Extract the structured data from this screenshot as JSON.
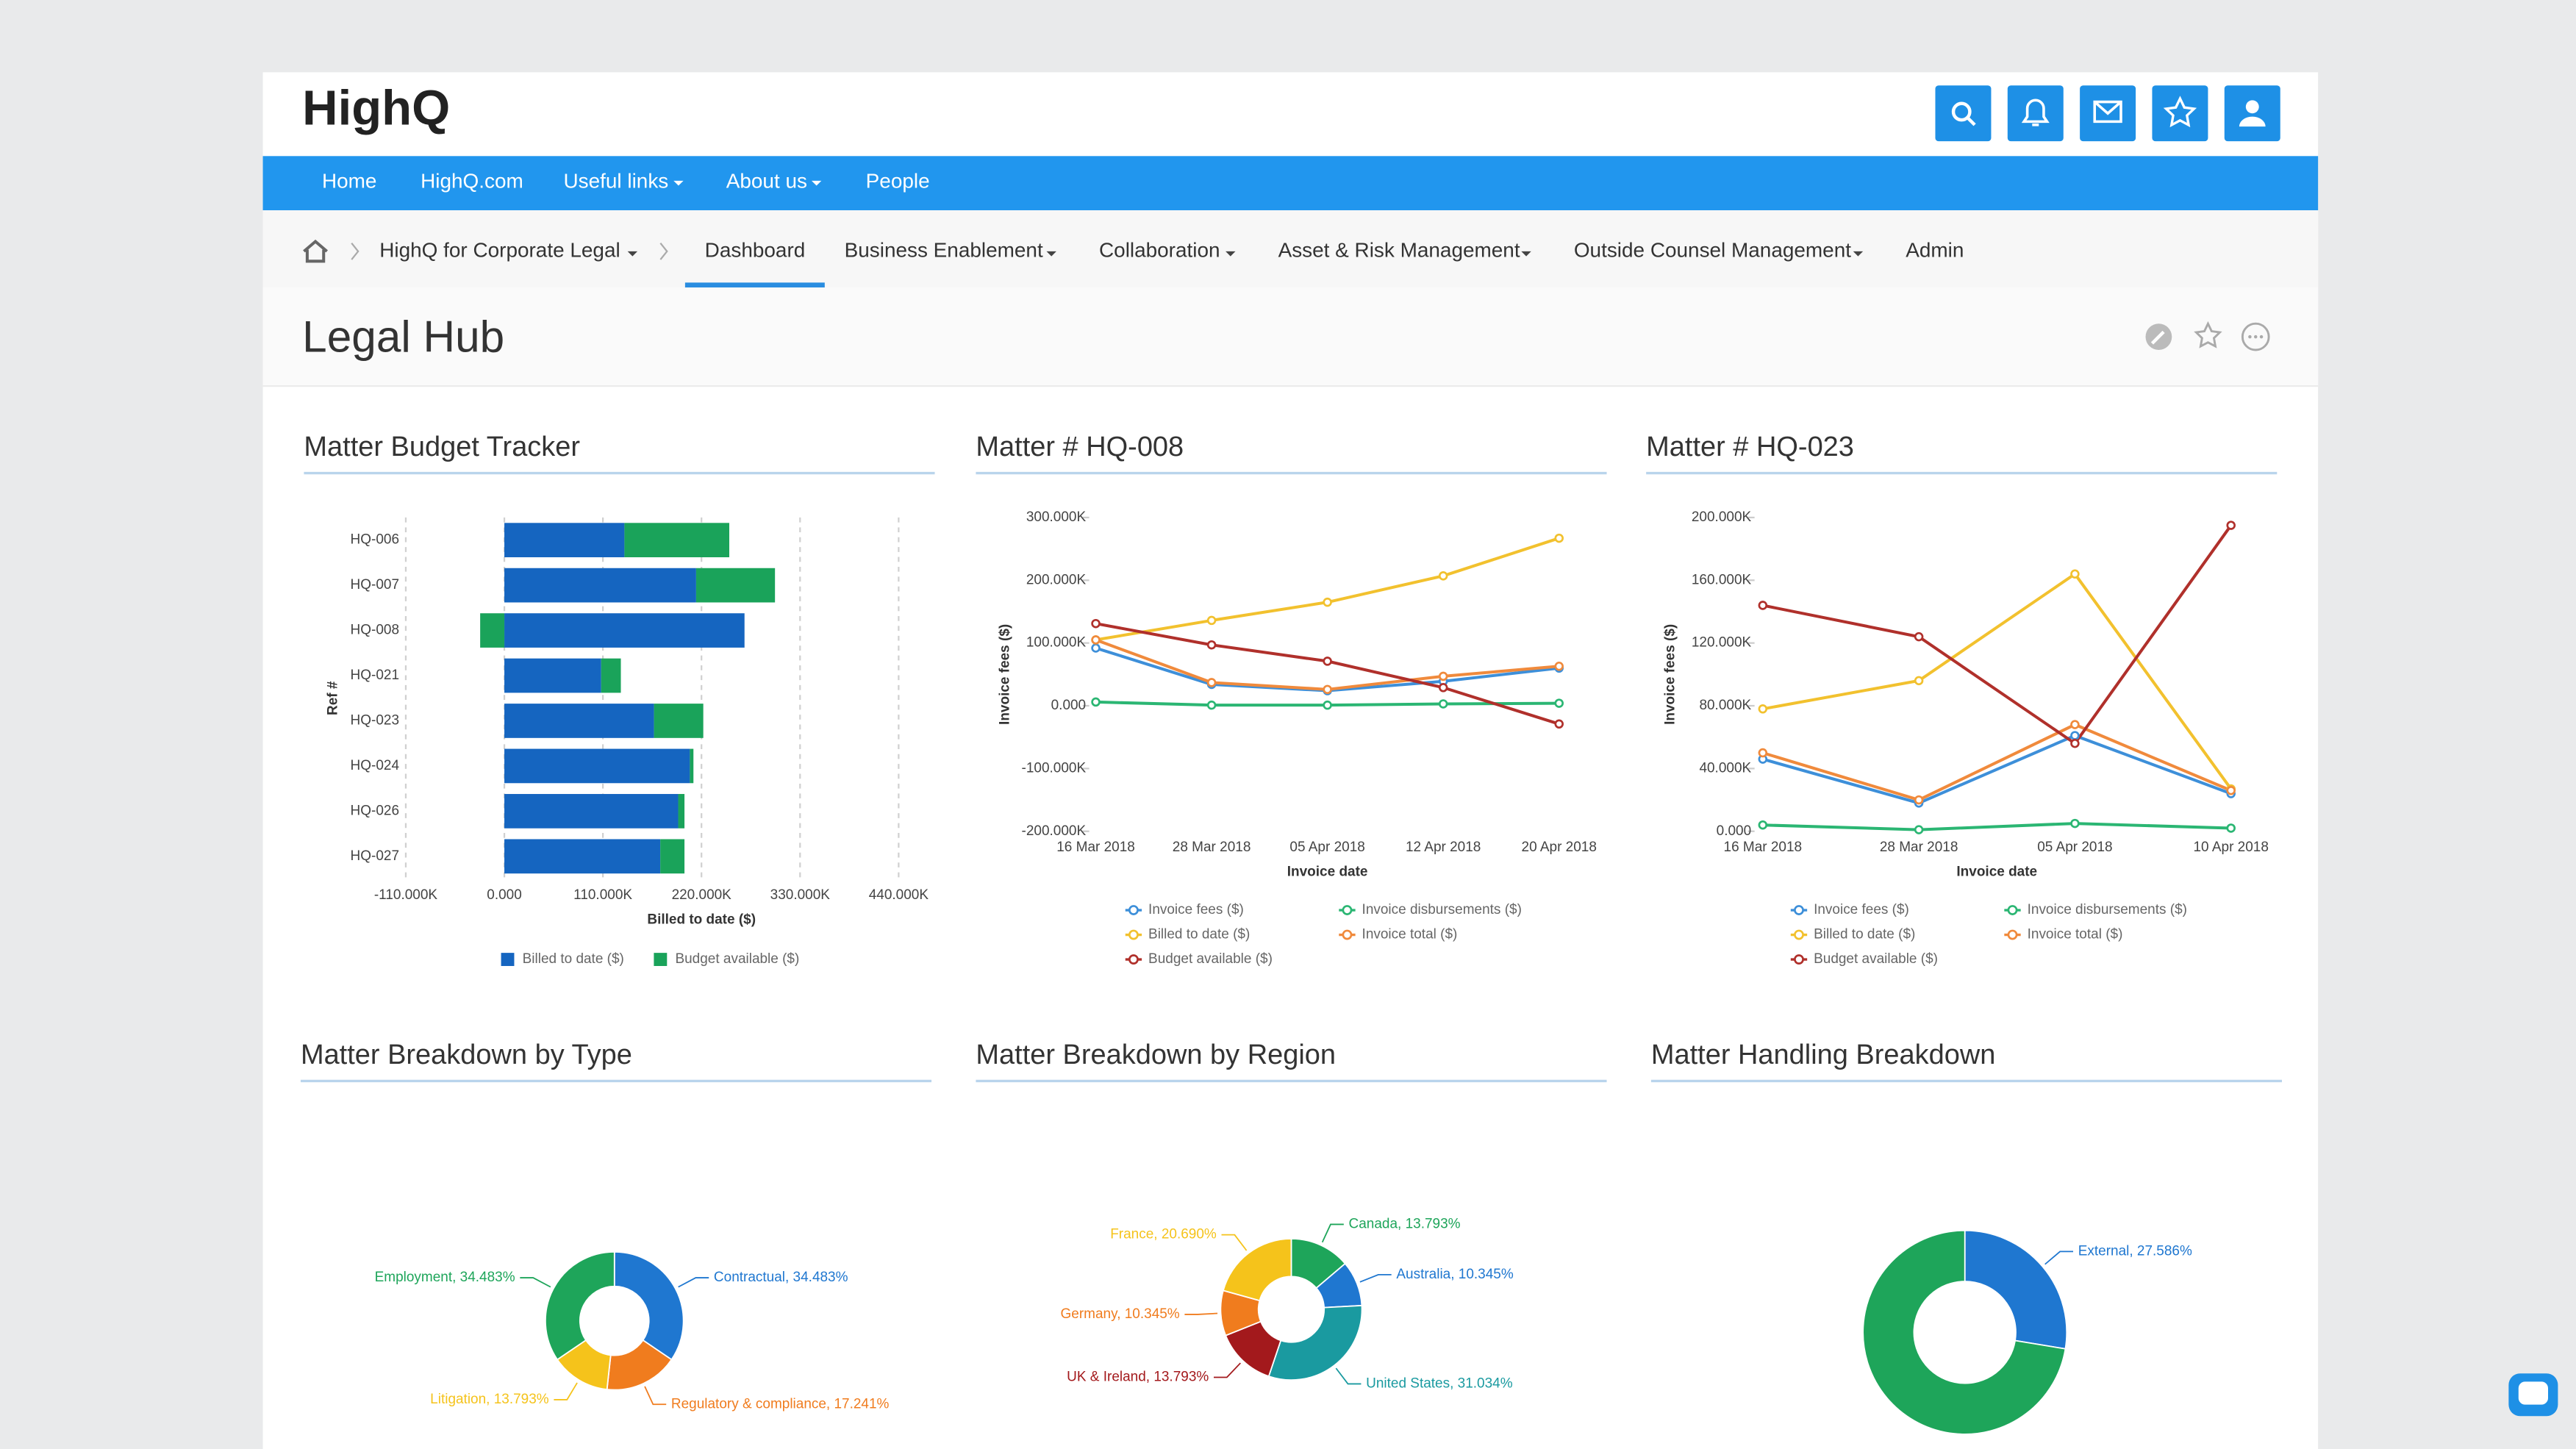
{
  "header": {
    "logo": "HighQ"
  },
  "nav": {
    "items": [
      "Home",
      "HighQ.com",
      "Useful links",
      "About us",
      "People"
    ]
  },
  "breadcrumb": {
    "items": [
      "HighQ for Corporate Legal",
      "Dashboard",
      "Business Enablement",
      "Collaboration",
      "Asset & Risk Management",
      "Outside Counsel Management",
      "Admin"
    ]
  },
  "page": {
    "title": "Legal Hub"
  },
  "chart_data": [
    {
      "type": "bar",
      "orientation": "horizontal",
      "stacked": true,
      "title": "Matter Budget Tracker",
      "categories": [
        "HQ-006",
        "HQ-007",
        "HQ-008",
        "HQ-021",
        "HQ-023",
        "HQ-024",
        "HQ-026",
        "HQ-027"
      ],
      "series": [
        {
          "name": "Billed to date ($)",
          "color": "#1565c0",
          "values": [
            134000,
            214000,
            268000,
            108000,
            167000,
            207000,
            194000,
            174000
          ]
        },
        {
          "name": "Budget available ($)",
          "color": "#1aa35a",
          "values": [
            117000,
            88000,
            -27000,
            22000,
            55000,
            4000,
            7000,
            27000
          ]
        }
      ],
      "xlabel": "Billed to date ($)",
      "ylabel": "Ref #",
      "xlim": [
        -110000,
        440000
      ],
      "xticks": [
        {
          "value": -110000,
          "label": "-110.000K"
        },
        {
          "value": 0,
          "label": "0.000"
        },
        {
          "value": 110000,
          "label": "110.000K"
        },
        {
          "value": 220000,
          "label": "220.000K"
        },
        {
          "value": 330000,
          "label": "330.000K"
        },
        {
          "value": 440000,
          "label": "440.000K"
        }
      ],
      "grid": true,
      "legend": "bottom"
    },
    {
      "type": "line",
      "title": "Matter # HQ-008",
      "categories": [
        "16 Mar 2018",
        "28 Mar 2018",
        "05 Apr 2018",
        "12 Apr 2018",
        "20 Apr 2018"
      ],
      "series": [
        {
          "name": "Invoice fees ($)",
          "color": "#3d8fd9",
          "values": [
            92000,
            34000,
            24000,
            39000,
            60000
          ]
        },
        {
          "name": "Invoice disbursements ($)",
          "color": "#2bb673",
          "values": [
            6000,
            1000,
            1000,
            3000,
            4000
          ]
        },
        {
          "name": "Billed to date ($)",
          "color": "#f2c12e",
          "values": [
            105000,
            136000,
            165000,
            207000,
            267000
          ]
        },
        {
          "name": "Invoice total ($)",
          "color": "#f08a3c",
          "values": [
            105000,
            37000,
            26000,
            47000,
            63000
          ]
        },
        {
          "name": "Budget available ($)",
          "color": "#b0302b",
          "values": [
            131000,
            97000,
            71000,
            29000,
            -29000
          ]
        }
      ],
      "xlabel": "Invoice date",
      "ylabel": "Invoice fees ($)",
      "ylim": [
        -200000,
        300000
      ],
      "yticks": [
        {
          "value": 300000,
          "label": "300.000K"
        },
        {
          "value": 200000,
          "label": "200.000K"
        },
        {
          "value": 100000,
          "label": "100.000K"
        },
        {
          "value": 0,
          "label": "0.000"
        },
        {
          "value": -100000,
          "label": "-100.000K"
        },
        {
          "value": -200000,
          "label": "-200.000K"
        }
      ],
      "grid": false,
      "legend": "bottom"
    },
    {
      "type": "line",
      "title": "Matter # HQ-023",
      "categories": [
        "16 Mar 2018",
        "28 Mar 2018",
        "05 Apr 2018",
        "10 Apr 2018"
      ],
      "series": [
        {
          "name": "Invoice fees ($)",
          "color": "#3d8fd9",
          "values": [
            46000,
            18000,
            61000,
            24000
          ]
        },
        {
          "name": "Invoice disbursements ($)",
          "color": "#2bb673",
          "values": [
            4000,
            1000,
            5000,
            2000
          ]
        },
        {
          "name": "Billed to date ($)",
          "color": "#f2c12e",
          "values": [
            78000,
            96000,
            164000,
            27000
          ]
        },
        {
          "name": "Invoice total ($)",
          "color": "#f08a3c",
          "values": [
            50000,
            20000,
            68000,
            26000
          ]
        },
        {
          "name": "Budget available ($)",
          "color": "#b0302b",
          "values": [
            144000,
            124000,
            56000,
            195000
          ]
        }
      ],
      "xlabel": "Invoice date",
      "ylabel": "Invoice fees ($)",
      "ylim": [
        0,
        200000
      ],
      "yticks": [
        {
          "value": 200000,
          "label": "200.000K"
        },
        {
          "value": 160000,
          "label": "160.000K"
        },
        {
          "value": 120000,
          "label": "120.000K"
        },
        {
          "value": 80000,
          "label": "80.000K"
        },
        {
          "value": 40000,
          "label": "40.000K"
        },
        {
          "value": 0,
          "label": "0.000"
        }
      ],
      "grid": false,
      "legend": "bottom"
    },
    {
      "type": "pie",
      "donut": true,
      "title": "Matter Breakdown by Type",
      "values": [
        34.483,
        17.241,
        13.793,
        34.483
      ],
      "value_labels": [
        "Contractual, 34.483%",
        "Regulatory & compliance, 17.241%",
        "Litigation, 13.793%",
        "Employment, 34.483%"
      ],
      "colors": [
        "#1f77d0",
        "#f07c1e",
        "#f5c31b",
        "#1ea55a"
      ]
    },
    {
      "type": "pie",
      "donut": true,
      "title": "Matter Breakdown by Region",
      "values": [
        13.793,
        10.345,
        31.034,
        13.793,
        10.345,
        20.69
      ],
      "value_labels": [
        "Canada, 13.793%",
        "Australia, 10.345%",
        "United States, 31.034%",
        "UK & Ireland, 13.793%",
        "Germany, 10.345%",
        "France, 20.690%"
      ],
      "colors": [
        "#1ea55a",
        "#1f77d0",
        "#1a9aa0",
        "#a3191c",
        "#f07c1e",
        "#f5c31b"
      ]
    },
    {
      "type": "pie",
      "donut": true,
      "title": "Matter Handling Breakdown",
      "values": [
        27.586,
        72.414
      ],
      "value_labels": [
        "External, 27.586%",
        null
      ],
      "colors": [
        "#1f77d0",
        "#1ea55a"
      ]
    }
  ]
}
